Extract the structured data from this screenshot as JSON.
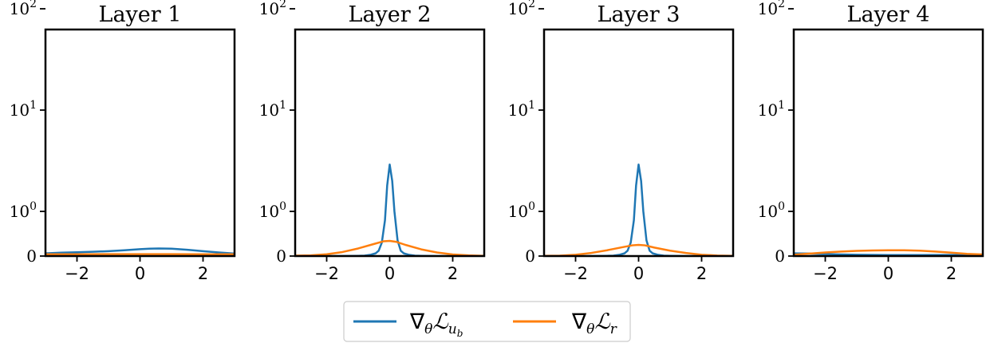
{
  "colors": {
    "grad_ub": "#1f77b4",
    "grad_r": "#ff7f0e",
    "axes": "#000000"
  },
  "legend": {
    "placement": "bottom-center",
    "entries": [
      {
        "text": "∇",
        "sub": "θ",
        "script": "ℒ",
        "script_sub": "u",
        "script_sub2": "b",
        "color_key": "grad_ub"
      },
      {
        "text": "∇",
        "sub": "θ",
        "script": "ℒ",
        "script_sub": "r",
        "script_sub2": "",
        "color_key": "grad_r"
      }
    ]
  },
  "chart_data": [
    {
      "type": "line",
      "title": "Layer 1",
      "xlim": [
        -3,
        3
      ],
      "ylim": [
        0,
        100
      ],
      "yscale": "symlog",
      "xticks": [
        -2,
        0,
        2
      ],
      "xtick_labels": [
        "−2",
        "0",
        "2"
      ],
      "yticks": [
        0,
        1,
        10,
        100
      ],
      "ytick_labels": [
        {
          "base": "0",
          "exp": ""
        },
        {
          "base": "10",
          "exp": "0"
        },
        {
          "base": "10",
          "exp": "1"
        },
        {
          "base": "10",
          "exp": "2"
        }
      ],
      "series": [
        {
          "color_key": "grad_ub",
          "x": [
            -3,
            -2.5,
            -2,
            -1.5,
            -1,
            -0.5,
            0,
            0.3,
            0.6,
            1,
            1.5,
            2,
            2.5,
            3
          ],
          "y": [
            0.06,
            0.075,
            0.085,
            0.095,
            0.11,
            0.13,
            0.155,
            0.165,
            0.17,
            0.165,
            0.14,
            0.11,
            0.08,
            0.055
          ]
        },
        {
          "color_key": "grad_r",
          "x": [
            -3,
            -2,
            -1,
            0,
            1,
            2,
            3
          ],
          "y": [
            0.04,
            0.04,
            0.042,
            0.043,
            0.042,
            0.04,
            0.04
          ]
        }
      ]
    },
    {
      "type": "line",
      "title": "Layer 2",
      "xlim": [
        -3,
        3
      ],
      "ylim": [
        0,
        100
      ],
      "yscale": "symlog",
      "xticks": [
        -2,
        0,
        2
      ],
      "xtick_labels": [
        "−2",
        "0",
        "2"
      ],
      "yticks": [
        0,
        1,
        10,
        100
      ],
      "ytick_labels": [
        {
          "base": "0",
          "exp": ""
        },
        {
          "base": "10",
          "exp": "0"
        },
        {
          "base": "10",
          "exp": "1"
        },
        {
          "base": "10",
          "exp": "2"
        }
      ],
      "series": [
        {
          "color_key": "grad_ub",
          "x": [
            -3,
            -1.5,
            -1,
            -0.8,
            -0.6,
            -0.45,
            -0.35,
            -0.25,
            -0.15,
            -0.08,
            0,
            0.08,
            0.15,
            0.25,
            0.35,
            0.45,
            0.6,
            0.8,
            1,
            1.5,
            3
          ],
          "y": [
            0,
            0,
            0.005,
            0.01,
            0.03,
            0.06,
            0.12,
            0.3,
            0.8,
            1.8,
            2.9,
            2.0,
            1.0,
            0.35,
            0.12,
            0.06,
            0.03,
            0.01,
            0.005,
            0,
            0
          ]
        },
        {
          "color_key": "grad_r",
          "x": [
            -3,
            -2.5,
            -2,
            -1.5,
            -1,
            -0.5,
            -0.2,
            0,
            0.2,
            0.5,
            1,
            1.5,
            2,
            2.5,
            3
          ],
          "y": [
            0.01,
            0.015,
            0.04,
            0.09,
            0.17,
            0.27,
            0.33,
            0.34,
            0.32,
            0.25,
            0.15,
            0.08,
            0.035,
            0.015,
            0.005
          ]
        }
      ]
    },
    {
      "type": "line",
      "title": "Layer 3",
      "xlim": [
        -3,
        3
      ],
      "ylim": [
        0,
        100
      ],
      "yscale": "symlog",
      "xticks": [
        -2,
        0,
        2
      ],
      "xtick_labels": [
        "−2",
        "0",
        "2"
      ],
      "yticks": [
        0,
        1,
        10,
        100
      ],
      "ytick_labels": [
        {
          "base": "0",
          "exp": ""
        },
        {
          "base": "10",
          "exp": "0"
        },
        {
          "base": "10",
          "exp": "1"
        },
        {
          "base": "10",
          "exp": "2"
        }
      ],
      "series": [
        {
          "color_key": "grad_ub",
          "x": [
            -3,
            -1.5,
            -1,
            -0.8,
            -0.6,
            -0.45,
            -0.35,
            -0.25,
            -0.15,
            -0.08,
            0,
            0.08,
            0.15,
            0.25,
            0.35,
            0.45,
            0.6,
            0.8,
            1,
            1.5,
            3
          ],
          "y": [
            0,
            0,
            0.005,
            0.01,
            0.03,
            0.06,
            0.12,
            0.3,
            0.8,
            1.8,
            2.9,
            2.0,
            1.0,
            0.35,
            0.12,
            0.06,
            0.03,
            0.01,
            0.005,
            0,
            0
          ]
        },
        {
          "color_key": "grad_r",
          "x": [
            -3,
            -2.5,
            -2,
            -1.5,
            -1,
            -0.5,
            -0.2,
            0,
            0.2,
            0.5,
            1,
            1.5,
            2,
            2.5,
            3
          ],
          "y": [
            0.005,
            0.01,
            0.03,
            0.07,
            0.13,
            0.2,
            0.24,
            0.25,
            0.24,
            0.19,
            0.12,
            0.07,
            0.03,
            0.012,
            0.005
          ]
        }
      ]
    },
    {
      "type": "line",
      "title": "Layer 4",
      "xlim": [
        -3,
        3
      ],
      "ylim": [
        0,
        100
      ],
      "yscale": "symlog",
      "xticks": [
        -2,
        0,
        2
      ],
      "xtick_labels": [
        "−2",
        "0",
        "2"
      ],
      "yticks": [
        0,
        1,
        10,
        100
      ],
      "ytick_labels": [
        {
          "base": "0",
          "exp": ""
        },
        {
          "base": "10",
          "exp": "0"
        },
        {
          "base": "10",
          "exp": "1"
        },
        {
          "base": "10",
          "exp": "2"
        }
      ],
      "series": [
        {
          "color_key": "grad_ub",
          "x": [
            -3,
            -2.5,
            -2,
            -1.5,
            -1,
            0,
            1,
            2,
            3
          ],
          "y": [
            0.06,
            0.055,
            0.045,
            0.035,
            0.028,
            0.022,
            0.022,
            0.024,
            0.028
          ]
        },
        {
          "color_key": "grad_r",
          "x": [
            -3,
            -2.5,
            -2,
            -1.5,
            -1,
            -0.5,
            0,
            0.5,
            1,
            1.5,
            2,
            2.5,
            3
          ],
          "y": [
            0.03,
            0.055,
            0.08,
            0.1,
            0.115,
            0.125,
            0.13,
            0.13,
            0.12,
            0.1,
            0.075,
            0.05,
            0.035
          ]
        }
      ]
    }
  ]
}
